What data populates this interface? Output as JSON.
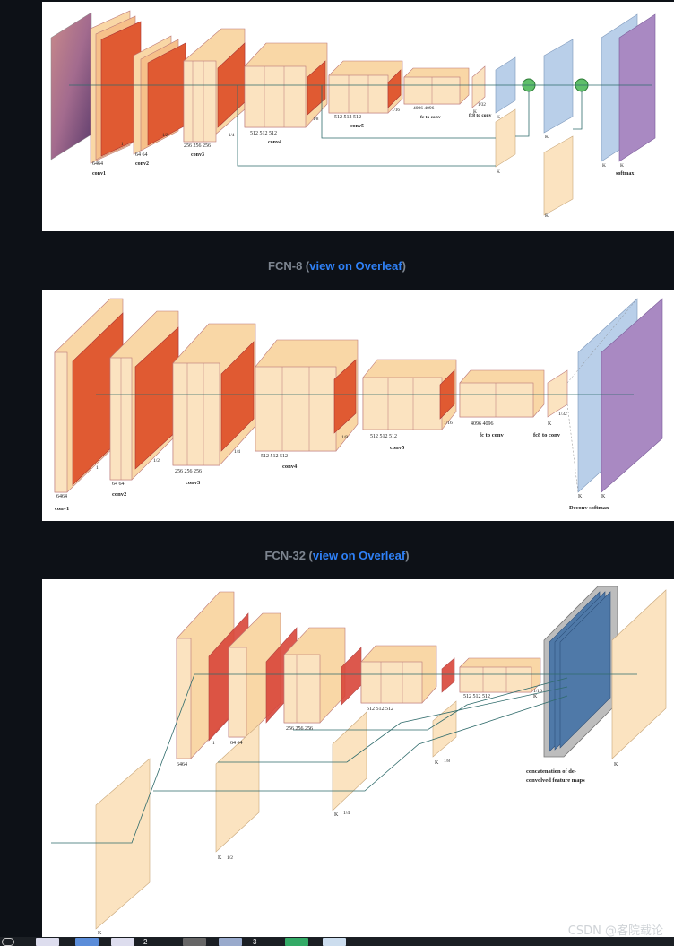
{
  "fcn16": {
    "labels": {
      "conv1": "conv1",
      "conv1_ch": "6464",
      "conv2": "conv2",
      "conv2_ch": "64  64",
      "conv3": "conv3",
      "conv3_ch": "256  256  256",
      "conv4": "conv4",
      "conv4_ch": "512  512  512",
      "conv5": "conv5",
      "conv5_ch": "512  512  512",
      "fc": "fc to conv",
      "fc_ch": "4096  4096",
      "fc8": "fc8 to conv",
      "k": "K",
      "softmax": "softmax",
      "s1": "1",
      "s2": "1/2",
      "s3": "1/4",
      "s4": "1/8",
      "s5": "1/16",
      "s6": "1/32"
    }
  },
  "fcn8_caption": {
    "title": "FCN-8 (",
    "link": "view on Overleaf",
    "end": ")"
  },
  "fcn8": {
    "labels": {
      "conv1": "conv1",
      "conv1_ch": "6464",
      "conv2": "conv2",
      "conv2_ch": "64  64",
      "conv3": "conv3",
      "conv3_ch": "256  256  256",
      "conv4": "conv4",
      "conv4_ch": "512  512  512",
      "conv5": "conv5",
      "conv5_ch": "512  512  512",
      "fc": "fc to conv",
      "fc_ch": "4096         4096",
      "fc8": "fc8 to conv",
      "deconv": "Deconv softmax",
      "k": "K",
      "s1": "1",
      "s2": "1/2",
      "s3": "1/4",
      "s4": "1/8",
      "s5": "1/16",
      "s6": "1/32"
    }
  },
  "fcn32_caption": {
    "title": "FCN-32 (",
    "link": "view on Overleaf",
    "end": ")"
  },
  "fcn32": {
    "labels": {
      "conv1_ch": "6464",
      "conv2_ch": "64  64",
      "conv3_ch": "256  256  256",
      "conv4_ch": "512  512  512",
      "conv5_ch": "512  512  512",
      "concat1": "concatenation of de-",
      "concat2": "convolved feature maps",
      "k": "K",
      "s1": "1",
      "s2": "1/2",
      "s3": "1/4",
      "s4": "1/8",
      "s5": "1/16"
    }
  },
  "watermark": "CSDN @客院载论",
  "taskbar": {
    "badge1": "2",
    "badge2": "3"
  }
}
